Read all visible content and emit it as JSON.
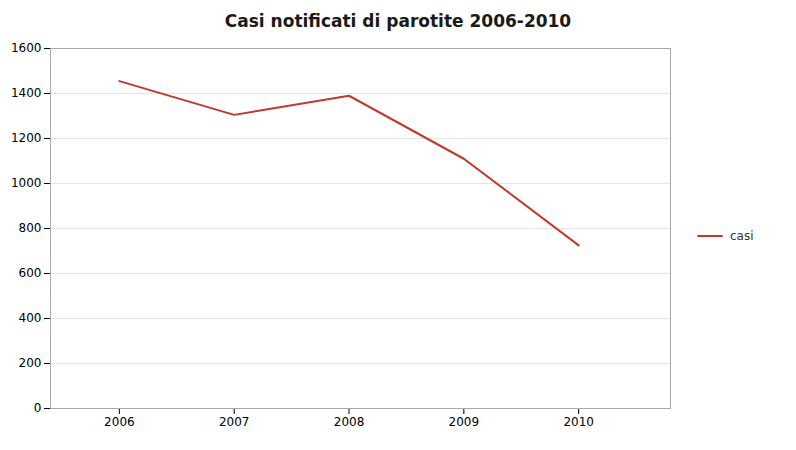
{
  "chart_data": {
    "type": "line",
    "title": "Casi notificati di parotite 2006-2010",
    "x": [
      2006,
      2007,
      2008,
      2009,
      2010
    ],
    "series": [
      {
        "name": "casi",
        "color": "#c0392b",
        "values": [
          1455,
          1305,
          1390,
          1110,
          725
        ]
      }
    ],
    "xlim": [
      2005.4,
      2010.8
    ],
    "xticks": [
      2006,
      2007,
      2008,
      2009,
      2010
    ],
    "ylim": [
      0,
      1600
    ],
    "yticks": [
      0,
      200,
      400,
      600,
      800,
      1000,
      1200,
      1400,
      1600
    ],
    "grid": "y",
    "legend": "right"
  }
}
